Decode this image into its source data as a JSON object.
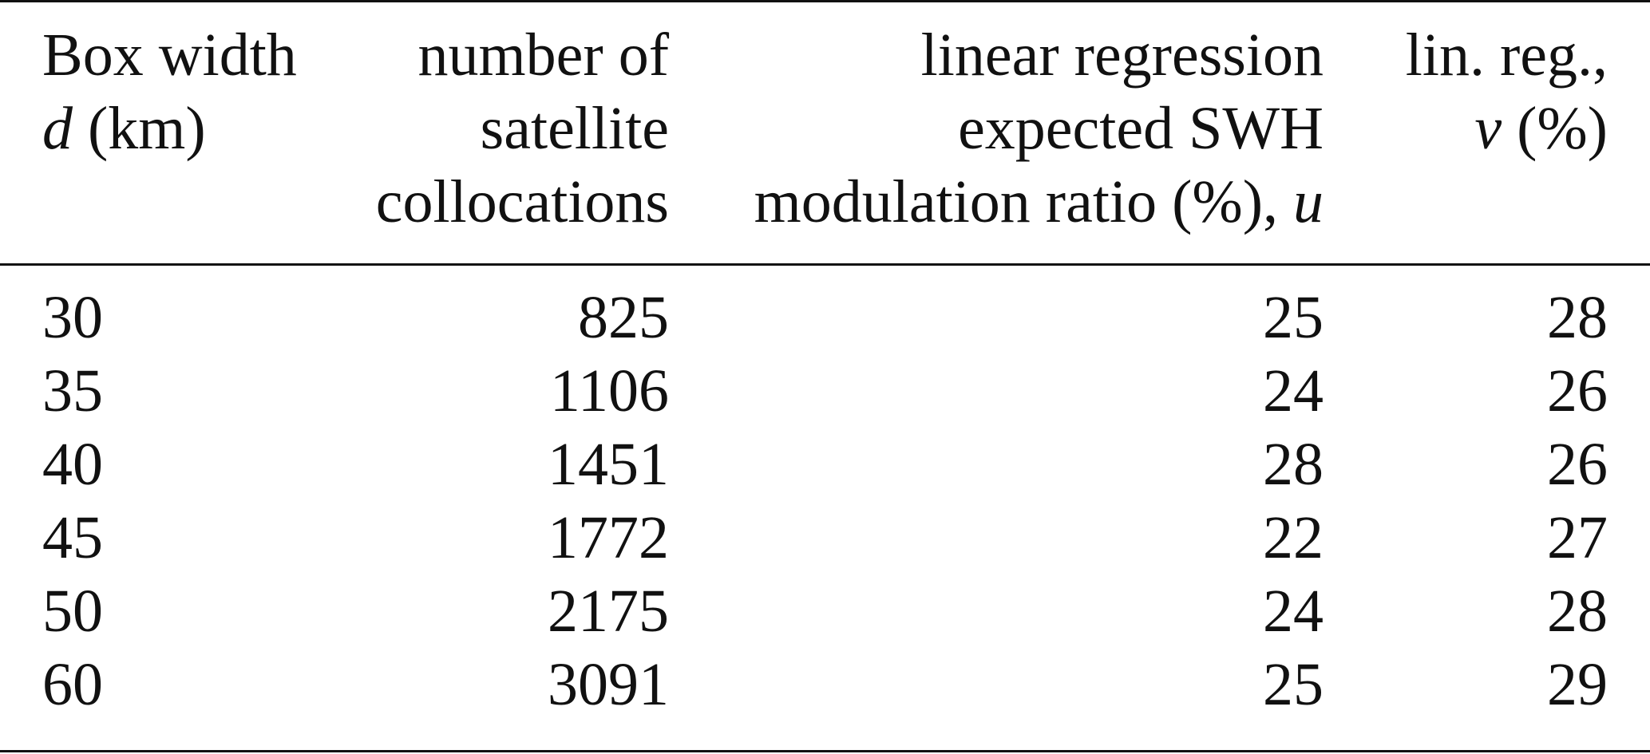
{
  "table": {
    "header": [
      [
        [
          "Box width"
        ],
        [
          "d",
          "(km)"
        ]
      ],
      [
        [
          "number of"
        ],
        [
          "satellite"
        ],
        [
          "collocations"
        ]
      ],
      [
        [
          "linear regression"
        ],
        [
          "expected SWH"
        ],
        [
          "modulation ratio (%),",
          "u"
        ]
      ],
      [
        [
          "lin. reg.,"
        ],
        [
          "v",
          "(%)"
        ]
      ]
    ],
    "rows": [
      [
        30,
        825,
        25,
        28
      ],
      [
        35,
        1106,
        24,
        26
      ],
      [
        40,
        1451,
        28,
        26
      ],
      [
        45,
        1772,
        22,
        27
      ],
      [
        50,
        2175,
        24,
        28
      ],
      [
        60,
        3091,
        25,
        29
      ]
    ]
  }
}
